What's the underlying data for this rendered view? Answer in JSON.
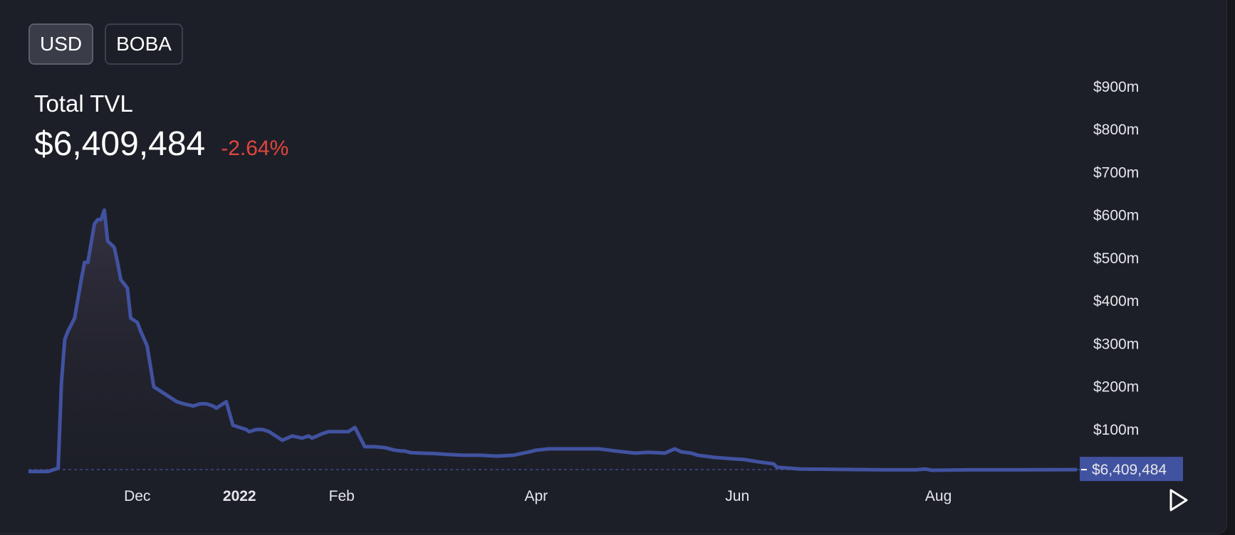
{
  "toggles": [
    "USD",
    "BOBA"
  ],
  "active_toggle": "USD",
  "summary": {
    "label": "Total TVL",
    "value": "$6,409,484",
    "change": "-2.64%",
    "change_color": "#e0463c"
  },
  "icons": {
    "play": "play-icon"
  },
  "colors": {
    "line": "#4152a0",
    "price_tag_bg": "#4152a0",
    "background": "#1d1f28"
  },
  "chart_data": {
    "type": "area",
    "title": "Total TVL",
    "xlabel": "",
    "ylabel": "",
    "x_range": [
      "2021-10-29",
      "2022-09-12"
    ],
    "ylim": [
      0,
      900
    ],
    "y_unit": "millions USD",
    "y_ticks": [
      100,
      200,
      300,
      400,
      500,
      600,
      700,
      800,
      900
    ],
    "y_tick_labels": [
      "$100m",
      "$200m",
      "$300m",
      "$400m",
      "$500m",
      "$600m",
      "$700m",
      "$800m",
      "$900m"
    ],
    "x_ticks": [
      {
        "date": "2021-12-01",
        "label": "Dec",
        "bold": false
      },
      {
        "date": "2022-01-01",
        "label": "2022",
        "bold": true
      },
      {
        "date": "2022-02-01",
        "label": "Feb",
        "bold": false
      },
      {
        "date": "2022-04-01",
        "label": "Apr",
        "bold": false
      },
      {
        "date": "2022-06-01",
        "label": "Jun",
        "bold": false
      },
      {
        "date": "2022-08-01",
        "label": "Aug",
        "bold": false
      }
    ],
    "last_value_label": "$6,409,484",
    "grid": false,
    "series": [
      {
        "x": [
          "2021-10-29",
          "2021-11-04",
          "2021-11-07",
          "2021-11-08",
          "2021-11-09",
          "2021-11-10",
          "2021-11-12",
          "2021-11-14",
          "2021-11-15",
          "2021-11-16",
          "2021-11-18",
          "2021-11-19",
          "2021-11-20",
          "2021-11-21",
          "2021-11-22",
          "2021-11-24",
          "2021-11-25",
          "2021-11-26",
          "2021-11-28",
          "2021-11-29",
          "2021-12-01",
          "2021-12-02",
          "2021-12-04",
          "2021-12-06",
          "2021-12-07",
          "2021-12-08",
          "2021-12-09",
          "2021-12-11",
          "2021-12-13",
          "2021-12-15",
          "2021-12-18",
          "2021-12-20",
          "2021-12-22",
          "2021-12-24",
          "2021-12-25",
          "2021-12-28",
          "2021-12-30",
          "2022-01-01",
          "2022-01-03",
          "2022-01-04",
          "2022-01-06",
          "2022-01-08",
          "2022-01-10",
          "2022-01-12",
          "2022-01-14",
          "2022-01-17",
          "2022-01-20",
          "2022-01-22",
          "2022-01-23",
          "2022-01-26",
          "2022-01-28",
          "2022-01-31",
          "2022-02-03",
          "2022-02-05",
          "2022-02-08",
          "2022-02-11",
          "2022-02-14",
          "2022-02-17",
          "2022-02-19",
          "2022-02-20",
          "2022-02-21",
          "2022-02-22",
          "2022-02-25",
          "2022-03-01",
          "2022-03-05",
          "2022-03-10",
          "2022-03-15",
          "2022-03-20",
          "2022-03-25",
          "2022-03-30",
          "2022-04-01",
          "2022-04-05",
          "2022-04-10",
          "2022-04-15",
          "2022-04-20",
          "2022-04-25",
          "2022-05-01",
          "2022-05-05",
          "2022-05-10",
          "2022-05-13",
          "2022-05-15",
          "2022-05-18",
          "2022-05-20",
          "2022-05-25",
          "2022-05-30",
          "2022-06-03",
          "2022-06-07",
          "2022-06-10",
          "2022-06-12",
          "2022-06-13",
          "2022-06-20",
          "2022-07-01",
          "2022-07-15",
          "2022-07-25",
          "2022-07-28",
          "2022-07-30",
          "2022-08-10",
          "2022-08-25",
          "2022-09-12"
        ],
        "y": [
          2,
          2,
          10,
          210,
          310,
          330,
          360,
          450,
          490,
          490,
          580,
          590,
          590,
          612,
          540,
          525,
          490,
          450,
          430,
          360,
          350,
          330,
          295,
          200,
          195,
          190,
          185,
          175,
          165,
          160,
          155,
          160,
          160,
          155,
          150,
          165,
          110,
          105,
          100,
          95,
          100,
          100,
          95,
          85,
          75,
          85,
          80,
          85,
          80,
          90,
          95,
          95,
          95,
          105,
          60,
          60,
          58,
          52,
          50,
          50,
          48,
          46,
          45,
          44,
          42,
          40,
          40,
          38,
          40,
          48,
          52,
          55,
          55,
          55,
          55,
          50,
          45,
          47,
          45,
          55,
          48,
          45,
          40,
          35,
          32,
          30,
          25,
          22,
          20,
          12,
          8,
          7,
          6,
          6,
          8,
          5,
          6,
          6,
          6.4
        ]
      }
    ]
  }
}
